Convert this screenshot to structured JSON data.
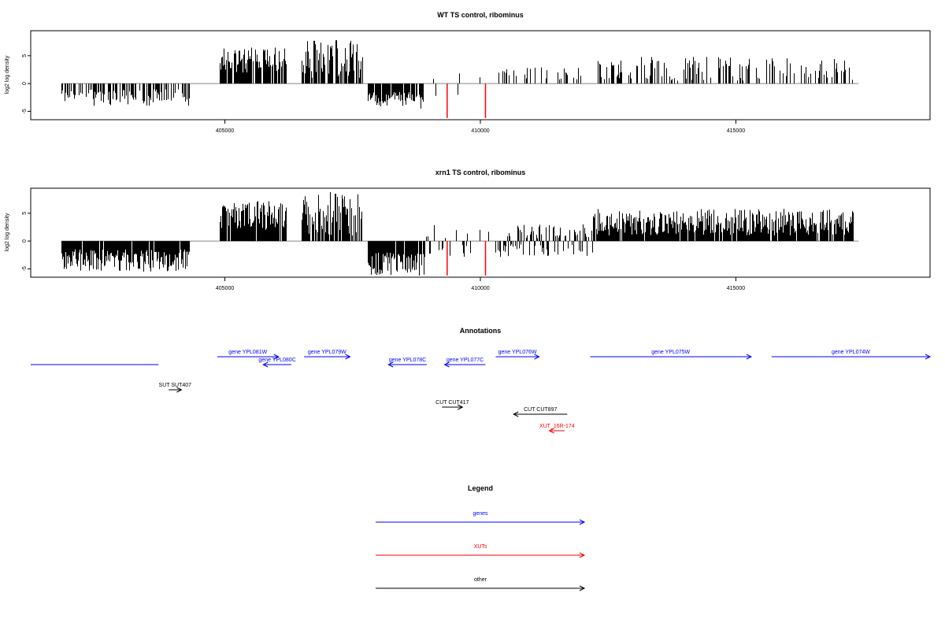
{
  "chart_data": [
    {
      "type": "bar",
      "title": "WT TS control, ribominus",
      "xlabel": "",
      "ylabel": "log2 log density",
      "xlim": [
        401200,
        418800
      ],
      "ylim": [
        -6.5,
        9.5
      ],
      "xticks": [
        405000,
        410000,
        415000
      ],
      "xtick_labels": [
        "405000",
        "410000",
        "415000"
      ],
      "yticks": [
        -5,
        0,
        5
      ],
      "ytick_labels": [
        "-5",
        "0",
        "5"
      ],
      "baseline": 0,
      "segments": [
        {
          "range": [
            401800,
            404300
          ],
          "sign": -1,
          "min": 1.0,
          "max": 4.0,
          "density": 0.55,
          "seed": 11
        },
        {
          "range": [
            404900,
            406200
          ],
          "sign": 1,
          "min": 2.0,
          "max": 6.5,
          "density": 0.85,
          "seed": 12
        },
        {
          "range": [
            406500,
            407700
          ],
          "sign": 1,
          "min": 1.0,
          "max": 7.8,
          "density": 0.75,
          "seed": 13
        },
        {
          "range": [
            407800,
            408900
          ],
          "sign": -1,
          "min": 1.5,
          "max": 4.5,
          "density": 0.85,
          "seed": 14
        },
        {
          "range": [
            408900,
            410200
          ],
          "sign": 0,
          "min": 0.5,
          "max": 2.5,
          "density": 0.08,
          "seed": 15
        },
        {
          "range": [
            410300,
            412000
          ],
          "sign": 1,
          "min": 0.5,
          "max": 3.0,
          "density": 0.22,
          "seed": 16
        },
        {
          "range": [
            412300,
            417300
          ],
          "sign": 1,
          "min": 0.5,
          "max": 4.8,
          "density": 0.35,
          "seed": 17
        }
      ],
      "highlight_bars": [
        {
          "x": 409350,
          "y": -6.2
        },
        {
          "x": 410100,
          "y": -6.2
        }
      ],
      "highlight_color": "#ff0000",
      "bar_color": "#000000",
      "baseline_color": "#888888"
    },
    {
      "type": "bar",
      "title": "xrn1 TS control, ribominus",
      "xlabel": "",
      "ylabel": "log2 log density",
      "xlim": [
        401200,
        418800
      ],
      "ylim": [
        -6.5,
        9.5
      ],
      "xticks": [
        405000,
        410000,
        415000
      ],
      "xtick_labels": [
        "405000",
        "410000",
        "415000"
      ],
      "yticks": [
        -5,
        0,
        5
      ],
      "ytick_labels": [
        "-5",
        "0",
        "5"
      ],
      "baseline": 0,
      "segments": [
        {
          "range": [
            401800,
            404300
          ],
          "sign": -1,
          "min": 1.5,
          "max": 5.5,
          "density": 0.95,
          "seed": 21
        },
        {
          "range": [
            404900,
            406200
          ],
          "sign": 1,
          "min": 2.0,
          "max": 7.2,
          "density": 0.95,
          "seed": 22
        },
        {
          "range": [
            406500,
            407700
          ],
          "sign": 1,
          "min": 1.0,
          "max": 8.8,
          "density": 0.8,
          "seed": 23
        },
        {
          "range": [
            407800,
            408900
          ],
          "sign": -1,
          "min": 2.0,
          "max": 6.2,
          "density": 0.95,
          "seed": 24
        },
        {
          "range": [
            408900,
            410200
          ],
          "sign": 0,
          "min": 0.5,
          "max": 3.0,
          "density": 0.25,
          "seed": 25
        },
        {
          "range": [
            410300,
            412200
          ],
          "sign": 0,
          "min": 0.5,
          "max": 3.0,
          "density": 0.6,
          "seed": 26
        },
        {
          "range": [
            412200,
            417300
          ],
          "sign": 1,
          "min": 1.0,
          "max": 5.8,
          "density": 0.95,
          "seed": 27
        }
      ],
      "highlight_bars": [
        {
          "x": 409350,
          "y": -6.2
        },
        {
          "x": 410100,
          "y": -6.2
        }
      ],
      "highlight_color": "#ff0000",
      "bar_color": "#000000",
      "baseline_color": "#888888"
    }
  ],
  "annotations": {
    "title": "Annotations",
    "features": [
      {
        "label": "",
        "color": "#0000ff",
        "start": 401200,
        "end": 403700,
        "direction": "none",
        "row": 1
      },
      {
        "label": "gene YPL081W",
        "color": "#0000ff",
        "start": 404850,
        "end": 406050,
        "direction": "right",
        "row": 0
      },
      {
        "label": "gene YPL080C",
        "color": "#0000ff",
        "start": 405750,
        "end": 406300,
        "direction": "left",
        "row": 1
      },
      {
        "label": "gene YPL079W",
        "color": "#0000ff",
        "start": 406550,
        "end": 407450,
        "direction": "right",
        "row": 0
      },
      {
        "label": "gene YPL078C",
        "color": "#0000ff",
        "start": 408200,
        "end": 408950,
        "direction": "left",
        "row": 1
      },
      {
        "label": "gene YPL077C",
        "color": "#0000ff",
        "start": 409300,
        "end": 410100,
        "direction": "left",
        "row": 1
      },
      {
        "label": "gene YPL076W",
        "color": "#0000ff",
        "start": 410300,
        "end": 411150,
        "direction": "right",
        "row": 0
      },
      {
        "label": "gene YPL075W",
        "color": "#0000ff",
        "start": 412150,
        "end": 415300,
        "direction": "right",
        "row": 0
      },
      {
        "label": "gene YPL074W",
        "color": "#0000ff",
        "start": 415700,
        "end": 418800,
        "direction": "right",
        "row": 0
      },
      {
        "label": "SUT SUT407",
        "color": "#000000",
        "start": 403900,
        "end": 404150,
        "direction": "right",
        "row": 2
      },
      {
        "label": "CUT CUT417",
        "color": "#000000",
        "start": 409250,
        "end": 409650,
        "direction": "right",
        "row": 3
      },
      {
        "label": "CUT CUT897",
        "color": "#000000",
        "start": 410650,
        "end": 411700,
        "direction": "left",
        "row": 4
      },
      {
        "label": "XUT_16R-174",
        "color": "#ff0000",
        "start": 411350,
        "end": 411650,
        "direction": "left",
        "row": 5
      }
    ]
  },
  "legend": {
    "title": "Legend",
    "items": [
      {
        "label": "genes",
        "color": "#0000ff"
      },
      {
        "label": "XUTs",
        "color": "#ff0000"
      },
      {
        "label": "other",
        "color": "#000000"
      }
    ]
  }
}
